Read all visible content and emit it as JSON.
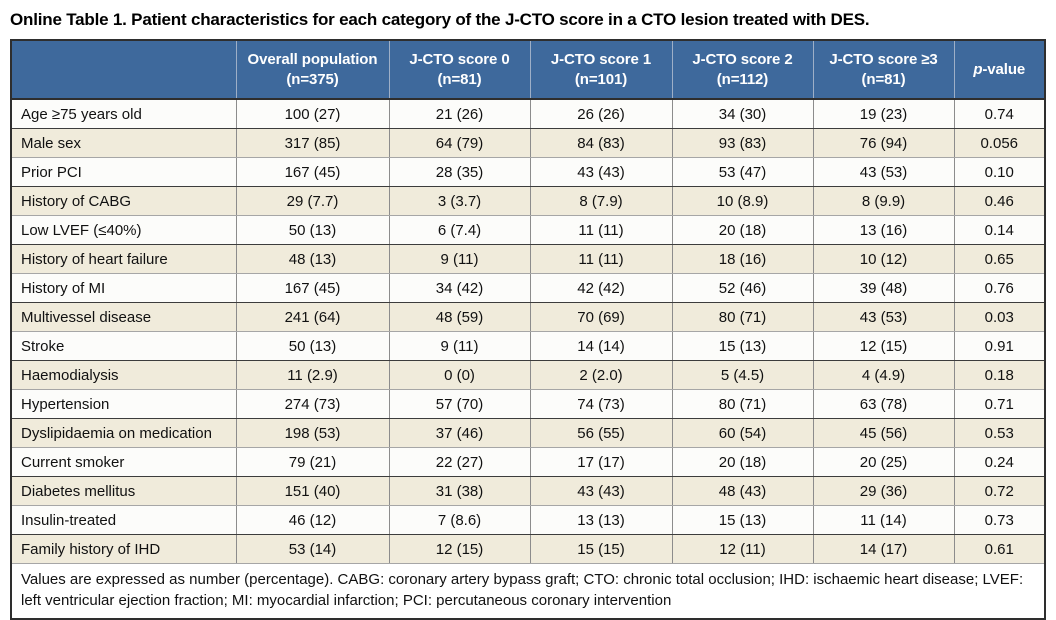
{
  "title": "Online Table 1. Patient characteristics for each category of the J-CTO score in a CTO lesion treated with DES.",
  "colors": {
    "header_bg": "#3e699c",
    "header_text": "#ffffff",
    "row_bg": "#fcfcfa",
    "row_alt_bg": "#f0ebdb",
    "outer_border": "#2e2e2e"
  },
  "table": {
    "columns": [
      {
        "label": "",
        "sub": ""
      },
      {
        "label": "Overall population",
        "sub": "(n=375)"
      },
      {
        "label": "J-CTO score 0",
        "sub": "(n=81)"
      },
      {
        "label": "J-CTO score 1",
        "sub": "(n=101)"
      },
      {
        "label": "J-CTO score 2",
        "sub": "(n=112)"
      },
      {
        "label": "J-CTO score ≥3",
        "sub": "(n=81)"
      },
      {
        "italic_prefix": "p",
        "label": "-value",
        "sub": ""
      }
    ],
    "rows": [
      {
        "label": "Age ≥75 years old",
        "values": [
          "100 (27)",
          "21 (26)",
          "26 (26)",
          "34 (30)",
          "19 (23)"
        ],
        "p": "0.74"
      },
      {
        "label": "Male sex",
        "values": [
          "317 (85)",
          "64 (79)",
          "84 (83)",
          "93 (83)",
          "76 (94)"
        ],
        "p": "0.056"
      },
      {
        "label": "Prior PCI",
        "values": [
          "167 (45)",
          "28 (35)",
          "43 (43)",
          "53 (47)",
          "43 (53)"
        ],
        "p": "0.10"
      },
      {
        "label": "History of CABG",
        "values": [
          "29 (7.7)",
          "3 (3.7)",
          "8 (7.9)",
          "10 (8.9)",
          "8 (9.9)"
        ],
        "p": "0.46"
      },
      {
        "label": "Low LVEF (≤40%)",
        "values": [
          "50 (13)",
          "6 (7.4)",
          "11 (11)",
          "20 (18)",
          "13 (16)"
        ],
        "p": "0.14"
      },
      {
        "label": "History of heart failure",
        "values": [
          "48 (13)",
          "9 (11)",
          "11 (11)",
          "18 (16)",
          "10 (12)"
        ],
        "p": "0.65"
      },
      {
        "label": "History of MI",
        "values": [
          "167 (45)",
          "34 (42)",
          "42 (42)",
          "52 (46)",
          "39 (48)"
        ],
        "p": "0.76"
      },
      {
        "label": "Multivessel disease",
        "values": [
          "241 (64)",
          "48 (59)",
          "70 (69)",
          "80 (71)",
          "43 (53)"
        ],
        "p": "0.03"
      },
      {
        "label": "Stroke",
        "values": [
          "50 (13)",
          "9 (11)",
          "14 (14)",
          "15 (13)",
          "12 (15)"
        ],
        "p": "0.91"
      },
      {
        "label": "Haemodialysis",
        "values": [
          "11 (2.9)",
          "0 (0)",
          "2 (2.0)",
          "5 (4.5)",
          "4 (4.9)"
        ],
        "p": "0.18"
      },
      {
        "label": "Hypertension",
        "values": [
          "274 (73)",
          "57 (70)",
          "74 (73)",
          "80 (71)",
          "63 (78)"
        ],
        "p": "0.71"
      },
      {
        "label": "Dyslipidaemia on medication",
        "values": [
          "198 (53)",
          "37 (46)",
          "56 (55)",
          "60 (54)",
          "45 (56)"
        ],
        "p": "0.53"
      },
      {
        "label": "Current smoker",
        "values": [
          "79 (21)",
          "22 (27)",
          "17 (17)",
          "20 (18)",
          "20 (25)"
        ],
        "p": "0.24"
      },
      {
        "label": "Diabetes mellitus",
        "values": [
          "151 (40)",
          "31 (38)",
          "43 (43)",
          "48 (43)",
          "29 (36)"
        ],
        "p": "0.72"
      },
      {
        "label": "Insulin-treated",
        "values": [
          "46 (12)",
          "7 (8.6)",
          "13 (13)",
          "15 (13)",
          "11 (14)"
        ],
        "p": "0.73"
      },
      {
        "label": "Family history of IHD",
        "values": [
          "53 (14)",
          "12 (15)",
          "15 (15)",
          "12 (11)",
          "14 (17)"
        ],
        "p": "0.61"
      }
    ],
    "footnote": "Values are expressed as number (percentage). CABG: coronary artery bypass graft; CTO: chronic total occlusion; IHD: ischaemic heart disease; LVEF: left ventricular ejection fraction; MI: myocardial infarction; PCI: percutaneous coronary intervention"
  }
}
